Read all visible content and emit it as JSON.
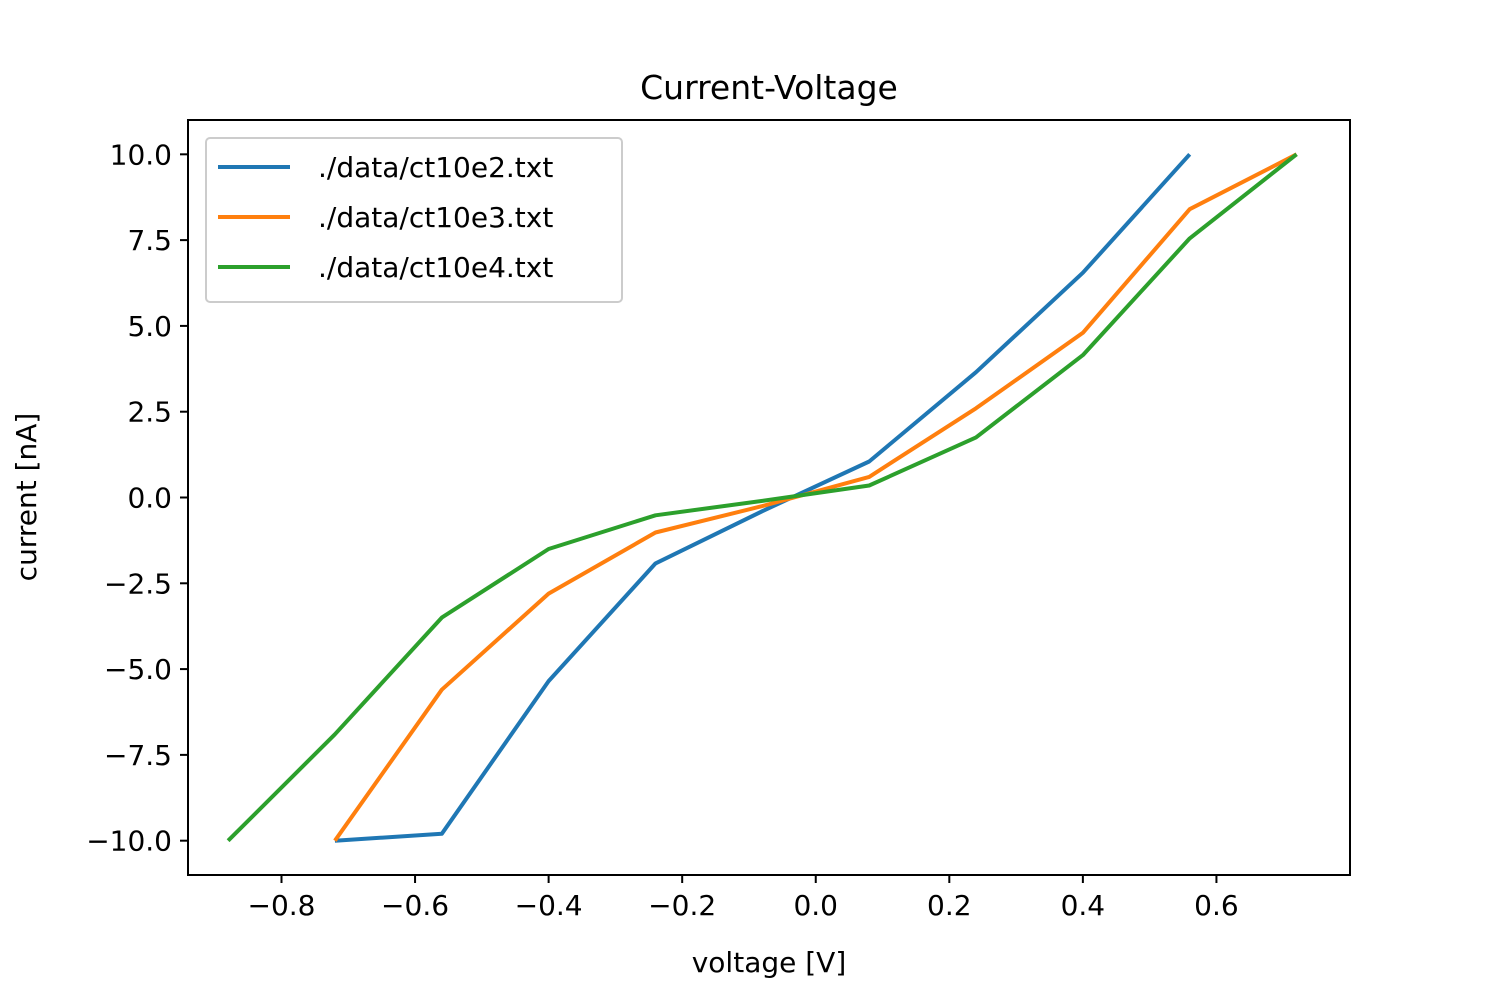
{
  "chart_data": {
    "type": "line",
    "title": "Current-Voltage",
    "xlabel": "voltage [V]",
    "ylabel": "current [nA]",
    "xlim": [
      -0.94,
      0.8
    ],
    "ylim": [
      -11.0,
      11.0
    ],
    "xticks": [
      -0.8,
      -0.6,
      -0.4,
      -0.2,
      0.0,
      0.2,
      0.4,
      0.6
    ],
    "xtick_labels": [
      "−0.8",
      "−0.6",
      "−0.4",
      "−0.2",
      "0.0",
      "0.2",
      "0.4",
      "0.6"
    ],
    "yticks": [
      10.0,
      7.5,
      5.0,
      2.5,
      0.0,
      -2.5,
      -5.0,
      -7.5,
      -10.0
    ],
    "ytick_labels": [
      "10.0",
      "7.5",
      "5.0",
      "2.5",
      "0.0",
      "−2.5",
      "−5.0",
      "−7.5",
      "−10.0"
    ],
    "grid": false,
    "legend_position": "top-left",
    "series": [
      {
        "name": "./data/ct10e2.txt",
        "color": "#1f77b4",
        "x": [
          -0.72,
          -0.56,
          -0.4,
          -0.24,
          -0.08,
          0.08,
          0.24,
          0.4,
          0.56
        ],
        "y": [
          -10.0,
          -9.8,
          -5.35,
          -1.92,
          -0.4,
          1.05,
          3.65,
          6.55,
          10.0
        ]
      },
      {
        "name": "./data/ct10e3.txt",
        "color": "#ff7f0e",
        "x": [
          -0.72,
          -0.56,
          -0.4,
          -0.24,
          -0.08,
          0.08,
          0.24,
          0.4,
          0.56,
          0.72
        ],
        "y": [
          -10.0,
          -5.6,
          -2.8,
          -1.02,
          -0.25,
          0.6,
          2.6,
          4.8,
          8.4,
          10.0
        ]
      },
      {
        "name": "./data/ct10e4.txt",
        "color": "#2ca02c",
        "x": [
          -0.88,
          -0.72,
          -0.56,
          -0.4,
          -0.24,
          -0.08,
          0.08,
          0.24,
          0.4,
          0.56,
          0.72
        ],
        "y": [
          -10.0,
          -6.9,
          -3.5,
          -1.5,
          -0.52,
          -0.1,
          0.35,
          1.75,
          4.15,
          7.55,
          10.0
        ]
      }
    ]
  }
}
